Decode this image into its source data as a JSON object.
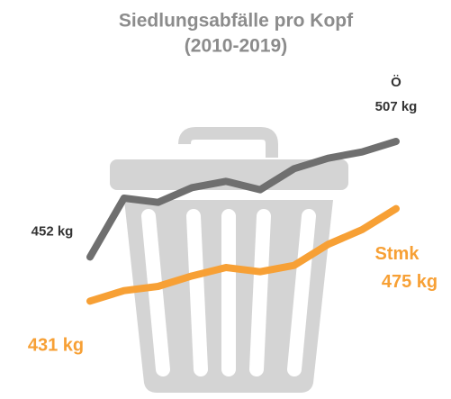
{
  "chart_data": {
    "type": "line",
    "title": "Siedlungsabfälle pro Kopf",
    "subtitle": "(2010-2019)",
    "categories": [
      null,
      null,
      null,
      null,
      null,
      null,
      null,
      null,
      null,
      null
    ],
    "ylim": [
      420,
      510
    ],
    "series": [
      {
        "name": "Ö",
        "color": "#6f6f6f",
        "values": [
          452,
          480,
          478,
          485,
          488,
          484,
          494,
          499,
          502,
          507
        ],
        "value_labels": [
          "452 kg",
          null,
          null,
          null,
          null,
          null,
          null,
          null,
          null,
          "507 kg"
        ]
      },
      {
        "name": "Stmk",
        "color": "#f7a035",
        "values": [
          431,
          436,
          438,
          443,
          447,
          445,
          448,
          458,
          465,
          475
        ],
        "value_labels": [
          "431 kg",
          null,
          null,
          null,
          null,
          null,
          null,
          null,
          null,
          "475 kg"
        ]
      }
    ]
  }
}
